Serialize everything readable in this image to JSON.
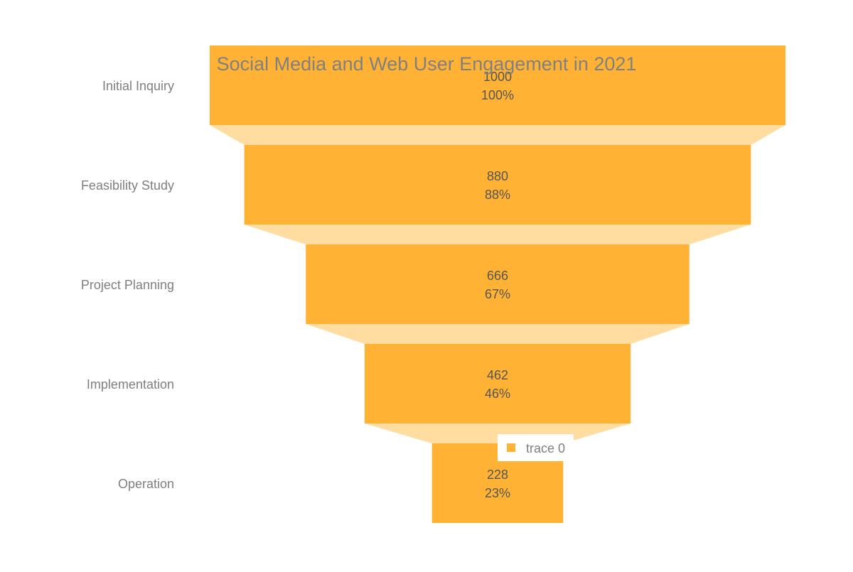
{
  "chart_data": {
    "type": "funnel",
    "title": "Social Media and Web User Engagement in 2021",
    "categories": [
      "Initial Inquiry",
      "Feasibility Study",
      "Project Planning",
      "Implementation",
      "Operation"
    ],
    "values": [
      1000,
      880,
      666,
      462,
      228
    ],
    "percent_labels": [
      "100%",
      "88%",
      "67%",
      "46%",
      "23%"
    ],
    "series": [
      {
        "name": "trace 0",
        "values": [
          1000,
          880,
          666,
          462,
          228
        ]
      }
    ],
    "legend": {
      "position": "bottom-center-overlay",
      "entries": [
        "trace 0"
      ]
    },
    "grid": false
  },
  "colors": {
    "bar": "#FFB234",
    "connector": "#FFDC9F",
    "text_axis": "#7f7f7f",
    "text_inside": "#555555",
    "title": "#808080",
    "background": "#ffffff"
  }
}
